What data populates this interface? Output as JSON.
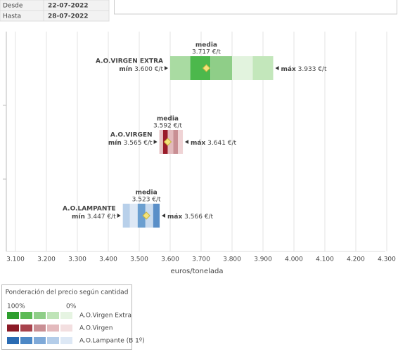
{
  "header": {
    "rows": [
      [
        "Desde",
        "22-07-2022"
      ],
      [
        "Hasta",
        "28-07-2022"
      ]
    ]
  },
  "chart_data": {
    "type": "range",
    "xlim": [
      3100,
      4300
    ],
    "xticks": [
      {
        "value": 3100,
        "label": "3.100"
      },
      {
        "value": 3200,
        "label": "3.200"
      },
      {
        "value": 3300,
        "label": "3.300"
      },
      {
        "value": 3400,
        "label": "3.400"
      },
      {
        "value": 3500,
        "label": "3.500"
      },
      {
        "value": 3600,
        "label": "3.600"
      },
      {
        "value": 3700,
        "label": "3.700"
      },
      {
        "value": 3800,
        "label": "3.800"
      },
      {
        "value": 3900,
        "label": "3.900"
      },
      {
        "value": 4000,
        "label": "4.000"
      },
      {
        "value": 4100,
        "label": "4.100"
      },
      {
        "value": 4200,
        "label": "4.200"
      },
      {
        "value": 4300,
        "label": "4.300"
      }
    ],
    "x_label": "euros/tonelada",
    "grid": true,
    "min_text": "mín",
    "max_text": "máx",
    "media_text": "media",
    "series": [
      {
        "name": "A.O.VIRGEN EXTRA",
        "min": 3600,
        "min_label": "3.600 €/t",
        "max": 3933,
        "max_label": "3.933 €/t",
        "media": 3717,
        "media_label": "3.717 €/t",
        "edges": [
          3600,
          3665,
          3730,
          3800,
          3867,
          3933
        ],
        "colors": [
          "#a9dba2",
          "#4cb84c",
          "#8fce88",
          "#e2f3de",
          "#c3e7bb"
        ]
      },
      {
        "name": "A.O.VIRGEN",
        "min": 3565,
        "min_label": "3.565 €/t",
        "max": 3641,
        "max_label": "3.641 €/t",
        "media": 3592,
        "media_label": "3.592 €/t",
        "edges": [
          3565,
          3577,
          3592,
          3610,
          3625,
          3641
        ],
        "colors": [
          "#e8c4c6",
          "#9a1c2a",
          "#e3babd",
          "#c98f94",
          "#efd3d5"
        ]
      },
      {
        "name": "A.O.LAMPANTE",
        "min": 3447,
        "min_label": "3.447 €/t",
        "max": 3566,
        "max_label": "3.566 €/t",
        "media": 3523,
        "media_label": "3.523 €/t",
        "edges": [
          3447,
          3470,
          3495,
          3520,
          3545,
          3566
        ],
        "colors": [
          "#b8d0ea",
          "#dde8f5",
          "#6b9fd0",
          "#c9dbef",
          "#5a8fc8"
        ]
      }
    ],
    "legend": {
      "title": "Ponderación del precio según cantidad",
      "max_label": "100%",
      "min_label": "0%",
      "items": [
        {
          "name": "A.O.Virgen Extra",
          "colors": [
            "#2e9e2e",
            "#5cba55",
            "#8fce88",
            "#bfe4b8",
            "#e6f4e2"
          ]
        },
        {
          "name": "A.O.Virgen",
          "colors": [
            "#8b1a26",
            "#a8434d",
            "#c98f94",
            "#e3babd",
            "#f3dfe0"
          ]
        },
        {
          "name": "A.O.Lampante (B 1º)",
          "colors": [
            "#2a6bb3",
            "#4d88c6",
            "#7fa9d8",
            "#b4cde9",
            "#dde8f5"
          ]
        }
      ]
    }
  }
}
